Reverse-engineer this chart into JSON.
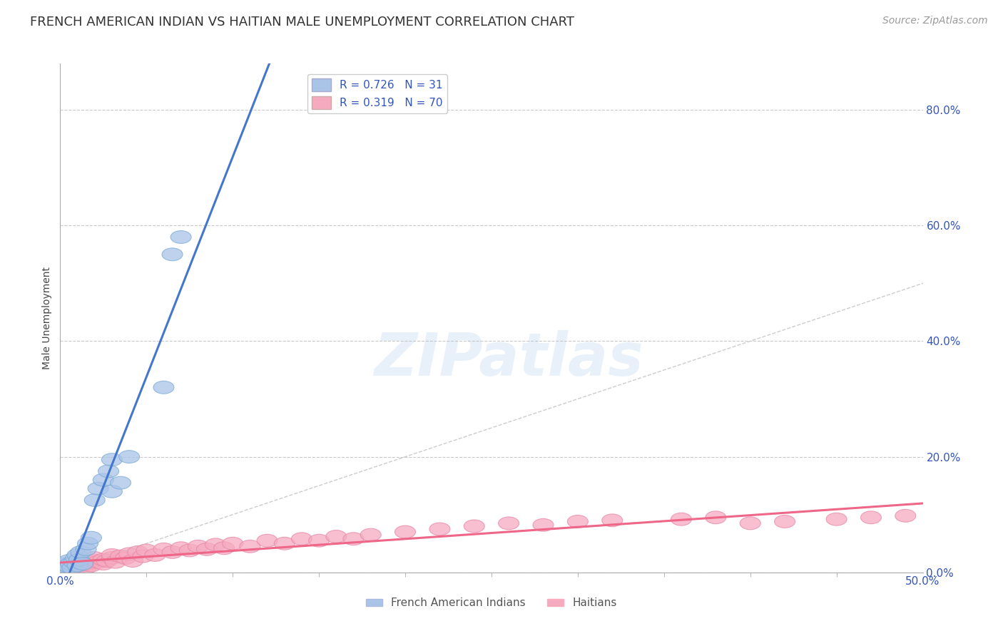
{
  "title": "FRENCH AMERICAN INDIAN VS HAITIAN MALE UNEMPLOYMENT CORRELATION CHART",
  "source_text": "Source: ZipAtlas.com",
  "ylabel": "Male Unemployment",
  "xlim": [
    0.0,
    0.5
  ],
  "ylim": [
    0.0,
    0.88
  ],
  "x_tick_positions": [
    0.0,
    0.5
  ],
  "x_tick_labels": [
    "0.0%",
    "50.0%"
  ],
  "y_ticks": [
    0.0,
    0.2,
    0.4,
    0.6,
    0.8
  ],
  "y_tick_labels": [
    "0.0%",
    "20.0%",
    "40.0%",
    "60.0%",
    "80.0%"
  ],
  "background_color": "#ffffff",
  "grid_color": "#bbbbbb",
  "watermark": "ZIPatlas",
  "blue_color": "#aac4e8",
  "pink_color": "#f5aabf",
  "blue_edge_color": "#7aaad4",
  "pink_edge_color": "#e888a8",
  "blue_line_color": "#4477cc",
  "pink_line_color": "#ee6688",
  "diagonal_color": "#cccccc",
  "R_blue": 0.726,
  "N_blue": 31,
  "R_pink": 0.319,
  "N_pink": 70,
  "legend_label_blue": "French American Indians",
  "legend_label_pink": "Haitians",
  "blue_x": [
    0.001,
    0.002,
    0.003,
    0.003,
    0.004,
    0.004,
    0.005,
    0.005,
    0.006,
    0.007,
    0.008,
    0.009,
    0.01,
    0.01,
    0.011,
    0.012,
    0.013,
    0.015,
    0.016,
    0.018,
    0.02,
    0.022,
    0.025,
    0.028,
    0.03,
    0.03,
    0.035,
    0.04,
    0.06,
    0.065,
    0.07
  ],
  "blue_y": [
    0.005,
    0.008,
    0.01,
    0.015,
    0.005,
    0.012,
    0.01,
    0.02,
    0.015,
    0.008,
    0.018,
    0.025,
    0.012,
    0.03,
    0.022,
    0.035,
    0.015,
    0.04,
    0.05,
    0.06,
    0.125,
    0.145,
    0.16,
    0.175,
    0.14,
    0.195,
    0.155,
    0.2,
    0.32,
    0.55,
    0.58
  ],
  "pink_x": [
    0.001,
    0.002,
    0.003,
    0.003,
    0.004,
    0.005,
    0.005,
    0.006,
    0.007,
    0.008,
    0.008,
    0.009,
    0.01,
    0.01,
    0.011,
    0.012,
    0.013,
    0.014,
    0.015,
    0.016,
    0.017,
    0.018,
    0.02,
    0.02,
    0.022,
    0.025,
    0.025,
    0.027,
    0.03,
    0.03,
    0.032,
    0.035,
    0.038,
    0.04,
    0.042,
    0.045,
    0.048,
    0.05,
    0.055,
    0.06,
    0.065,
    0.07,
    0.075,
    0.08,
    0.085,
    0.09,
    0.095,
    0.1,
    0.11,
    0.12,
    0.13,
    0.14,
    0.15,
    0.16,
    0.17,
    0.18,
    0.2,
    0.22,
    0.24,
    0.26,
    0.28,
    0.3,
    0.32,
    0.36,
    0.38,
    0.4,
    0.42,
    0.45,
    0.47,
    0.49
  ],
  "pink_y": [
    0.005,
    0.008,
    0.005,
    0.01,
    0.007,
    0.005,
    0.012,
    0.008,
    0.006,
    0.01,
    0.015,
    0.008,
    0.012,
    0.018,
    0.01,
    0.015,
    0.012,
    0.02,
    0.008,
    0.015,
    0.018,
    0.012,
    0.02,
    0.025,
    0.018,
    0.015,
    0.022,
    0.02,
    0.025,
    0.03,
    0.018,
    0.028,
    0.025,
    0.032,
    0.02,
    0.035,
    0.028,
    0.038,
    0.03,
    0.04,
    0.035,
    0.042,
    0.038,
    0.045,
    0.04,
    0.048,
    0.042,
    0.05,
    0.045,
    0.055,
    0.05,
    0.058,
    0.055,
    0.062,
    0.058,
    0.065,
    0.07,
    0.075,
    0.08,
    0.085,
    0.082,
    0.088,
    0.09,
    0.092,
    0.095,
    0.085,
    0.088,
    0.092,
    0.095,
    0.098
  ],
  "title_fontsize": 13,
  "axis_label_fontsize": 10,
  "tick_fontsize": 11,
  "legend_fontsize": 11,
  "source_fontsize": 10
}
